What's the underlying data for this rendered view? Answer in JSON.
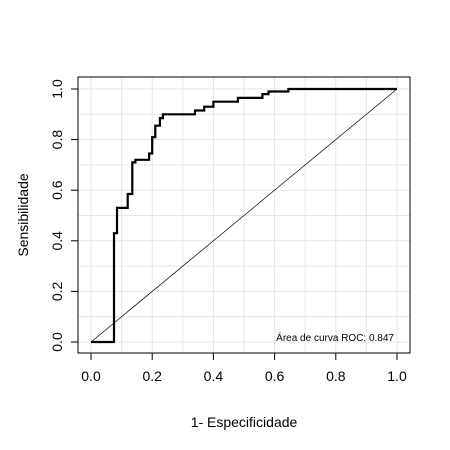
{
  "chart_data": {
    "type": "line",
    "title": "",
    "xlabel": "1- Especificidade",
    "ylabel": "Sensibilidade",
    "xlim": [
      0,
      1
    ],
    "ylim": [
      0,
      1
    ],
    "xticks": [
      "0.0",
      "0.2",
      "0.4",
      "0.6",
      "0.8",
      "1.0"
    ],
    "yticks": [
      "0.0",
      "0.2",
      "0.4",
      "0.6",
      "0.8",
      "1.0"
    ],
    "grid": true,
    "legend": "none",
    "annotation": "Área de curva ROC: 0.847",
    "line_color": "#000000",
    "grid_color": "#e6e6e6",
    "series": [
      {
        "values": {
          "x": [
            0.0,
            0.075,
            0.075,
            0.085,
            0.085,
            0.12,
            0.12,
            0.135,
            0.135,
            0.145,
            0.145,
            0.19,
            0.19,
            0.2,
            0.2,
            0.21,
            0.21,
            0.225,
            0.225,
            0.235,
            0.235,
            0.34,
            0.34,
            0.37,
            0.37,
            0.4,
            0.4,
            0.48,
            0.48,
            0.56,
            0.56,
            0.58,
            0.58,
            0.645,
            0.645,
            1.0
          ],
          "y": [
            0.0,
            0.0,
            0.43,
            0.43,
            0.53,
            0.53,
            0.585,
            0.585,
            0.71,
            0.71,
            0.72,
            0.72,
            0.745,
            0.745,
            0.81,
            0.81,
            0.855,
            0.855,
            0.885,
            0.885,
            0.9,
            0.9,
            0.915,
            0.915,
            0.93,
            0.93,
            0.95,
            0.95,
            0.965,
            0.965,
            0.98,
            0.98,
            0.99,
            0.99,
            1.0,
            1.0
          ]
        }
      },
      {
        "values": {
          "x": [
            0.0,
            1.0
          ],
          "y": [
            0.0,
            1.0
          ]
        }
      }
    ]
  }
}
